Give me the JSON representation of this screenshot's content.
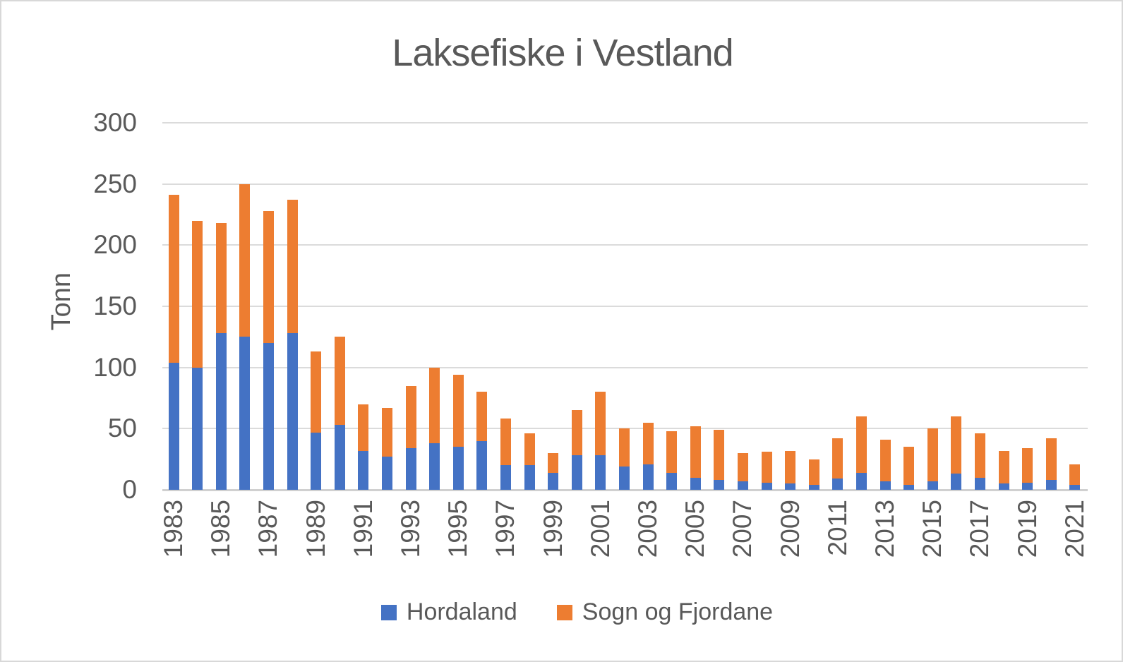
{
  "page": {
    "background": "#FFFFFF",
    "border_color": "#D8D8D8"
  },
  "chart_data": {
    "type": "bar",
    "stacked": true,
    "title": "Laksefiske i Vestland",
    "xlabel": "",
    "ylabel": "Tonn",
    "ylim": [
      0,
      300
    ],
    "yticks": [
      0,
      50,
      100,
      150,
      200,
      250,
      300
    ],
    "grid": "horizontal",
    "legend_position": "bottom",
    "text_color": "#595959",
    "gridline_color": "#DBDBDB",
    "axis_line_color": "#D0D0D0",
    "categories": [
      1983,
      1984,
      1985,
      1986,
      1987,
      1988,
      1989,
      1990,
      1991,
      1992,
      1993,
      1994,
      1995,
      1996,
      1997,
      1998,
      1999,
      2000,
      2001,
      2002,
      2003,
      2004,
      2005,
      2006,
      2007,
      2008,
      2009,
      2010,
      2011,
      2012,
      2013,
      2014,
      2015,
      2016,
      2017,
      2018,
      2019,
      2020,
      2021
    ],
    "xtick_labels": [
      "1983",
      "1985",
      "1987",
      "1989",
      "1991",
      "1993",
      "1995",
      "1997",
      "1999",
      "2001",
      "2003",
      "2005",
      "2007",
      "2009",
      "2011",
      "2013",
      "2015",
      "2017",
      "2019",
      "2021"
    ],
    "series": [
      {
        "name": "Hordaland",
        "color": "#4472C4",
        "values": [
          104,
          100,
          128,
          125,
          120,
          128,
          47,
          53,
          32,
          27,
          34,
          38,
          35,
          40,
          20,
          20,
          14,
          28,
          28,
          19,
          21,
          14,
          10,
          8,
          7,
          6,
          5,
          4,
          9,
          14,
          7,
          4,
          7,
          13,
          10,
          5,
          6,
          8,
          4
        ]
      },
      {
        "name": "Sogn og Fjordane",
        "color": "#ED7D31",
        "values": [
          137,
          120,
          90,
          125,
          108,
          109,
          66,
          72,
          38,
          40,
          51,
          62,
          59,
          40,
          38,
          26,
          16,
          37,
          52,
          31,
          34,
          34,
          42,
          41,
          23,
          25,
          27,
          21,
          33,
          46,
          34,
          31,
          43,
          47,
          36,
          27,
          28,
          34,
          17
        ]
      }
    ]
  }
}
